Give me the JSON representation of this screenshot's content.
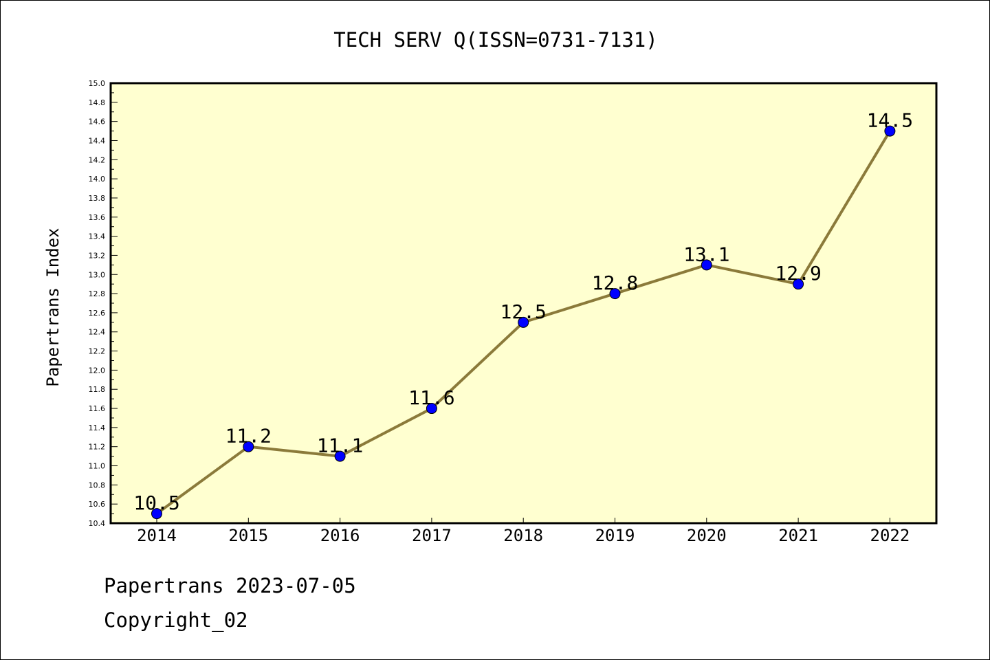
{
  "chart_data": {
    "type": "line",
    "title": "TECH SERV Q(ISSN=0731-7131)",
    "xlabel": "",
    "ylabel": "Papertrans Index",
    "categories": [
      "2014",
      "2015",
      "2016",
      "2017",
      "2018",
      "2019",
      "2020",
      "2021",
      "2022"
    ],
    "values": [
      10.5,
      11.2,
      11.1,
      11.6,
      12.5,
      12.8,
      13.1,
      12.9,
      14.5
    ],
    "data_labels": [
      "10.5",
      "11.2",
      "11.1",
      "11.6",
      "12.5",
      "12.8",
      "13.1",
      "12.9",
      "14.5"
    ],
    "ylim": [
      10.4,
      15.0
    ],
    "yticks": [
      "10.4",
      "10.6",
      "10.8",
      "11.0",
      "11.2",
      "11.4",
      "11.6",
      "11.8",
      "12.0",
      "12.2",
      "12.4",
      "12.6",
      "12.8",
      "13.0",
      "13.2",
      "13.4",
      "13.6",
      "13.8",
      "14.0",
      "14.2",
      "14.4",
      "14.6",
      "14.8",
      "15.0"
    ],
    "grid": false,
    "legend": "none",
    "colors": {
      "plot_background": "#ffffd0",
      "line": "#8b7a3a",
      "marker": "#0000ff",
      "axis": "#000000"
    }
  },
  "footer": {
    "date_line": "Papertrans 2023-07-05",
    "copyright": "Copyright_02"
  }
}
